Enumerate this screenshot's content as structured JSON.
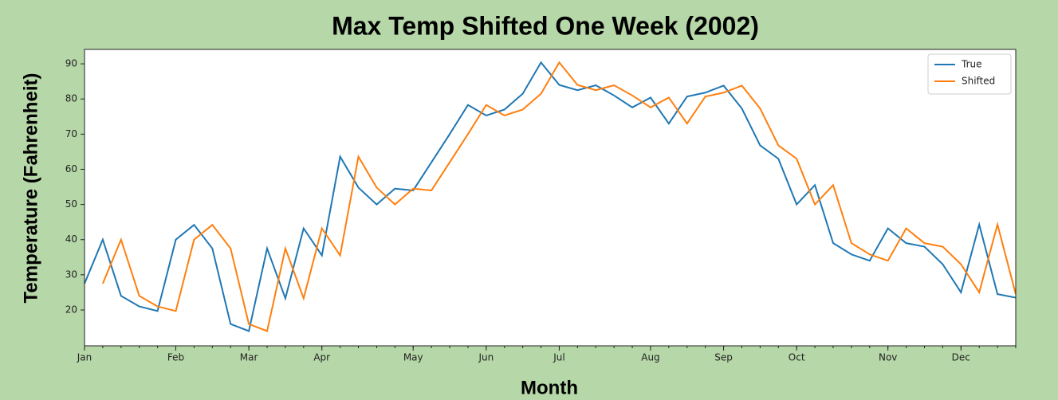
{
  "chart_data": {
    "type": "line",
    "title": "Max Temp Shifted One Week (2002)",
    "xlabel": "Month",
    "ylabel": "Temperature (Fahrenheit)",
    "x": [
      0,
      1,
      2,
      3,
      4,
      5,
      6,
      7,
      8,
      9,
      10,
      11,
      12,
      13,
      14,
      15,
      16,
      17,
      18,
      19,
      20,
      21,
      22,
      23,
      24,
      25,
      26,
      27,
      28,
      29,
      30,
      31,
      32,
      33,
      34,
      35,
      36,
      37,
      38,
      39,
      40,
      41,
      42,
      43,
      44,
      45,
      46,
      47,
      48,
      49,
      50,
      51
    ],
    "series": [
      {
        "name": "True",
        "color": "#1f77b4",
        "values": [
          27.5,
          40,
          24,
          21,
          19.7,
          40,
          44.2,
          37.5,
          16,
          14,
          37.5,
          23.3,
          43.2,
          35.5,
          63.6,
          54.8,
          50,
          54.5,
          54,
          62,
          70,
          78.3,
          75.3,
          77,
          81.5,
          90.4,
          84,
          82.5,
          83.9,
          81,
          77.6,
          80.4,
          73,
          80.7,
          81.8,
          83.8,
          77.3,
          66.8,
          63,
          50,
          55.5,
          39,
          35.8,
          34,
          43.2,
          39,
          38,
          33,
          25,
          44.3,
          24.5,
          23.5
        ]
      },
      {
        "name": "Shifted",
        "color": "#ff7f0e",
        "values": [
          null,
          27.5,
          40,
          24,
          21,
          19.7,
          40,
          44.2,
          37.5,
          16,
          14,
          37.5,
          23.3,
          43.2,
          35.5,
          63.6,
          54.8,
          50,
          54.5,
          54,
          62,
          70,
          78.3,
          75.3,
          77,
          81.5,
          90.4,
          84,
          82.5,
          83.9,
          81,
          77.6,
          80.4,
          73,
          80.7,
          81.8,
          83.8,
          77.3,
          66.8,
          63,
          50,
          55.5,
          39,
          35.8,
          34,
          43.2,
          39,
          38,
          33,
          25,
          44.3,
          24.5
        ]
      }
    ],
    "xlim": [
      0,
      51
    ],
    "xticks": [
      {
        "value": 0,
        "label": "Jan"
      },
      {
        "value": 5,
        "label": "Feb"
      },
      {
        "value": 9,
        "label": "Mar"
      },
      {
        "value": 13,
        "label": "Apr"
      },
      {
        "value": 18,
        "label": "May"
      },
      {
        "value": 22,
        "label": "Jun"
      },
      {
        "value": 26,
        "label": "Jul"
      },
      {
        "value": 31,
        "label": "Aug"
      },
      {
        "value": 35,
        "label": "Sep"
      },
      {
        "value": 39,
        "label": "Oct"
      },
      {
        "value": 44,
        "label": "Nov"
      },
      {
        "value": 48,
        "label": "Dec"
      }
    ],
    "ylim": [
      9.8,
      94.1
    ],
    "yticks": [
      20,
      30,
      40,
      50,
      60,
      70,
      80,
      90
    ],
    "legend": "upper right"
  }
}
